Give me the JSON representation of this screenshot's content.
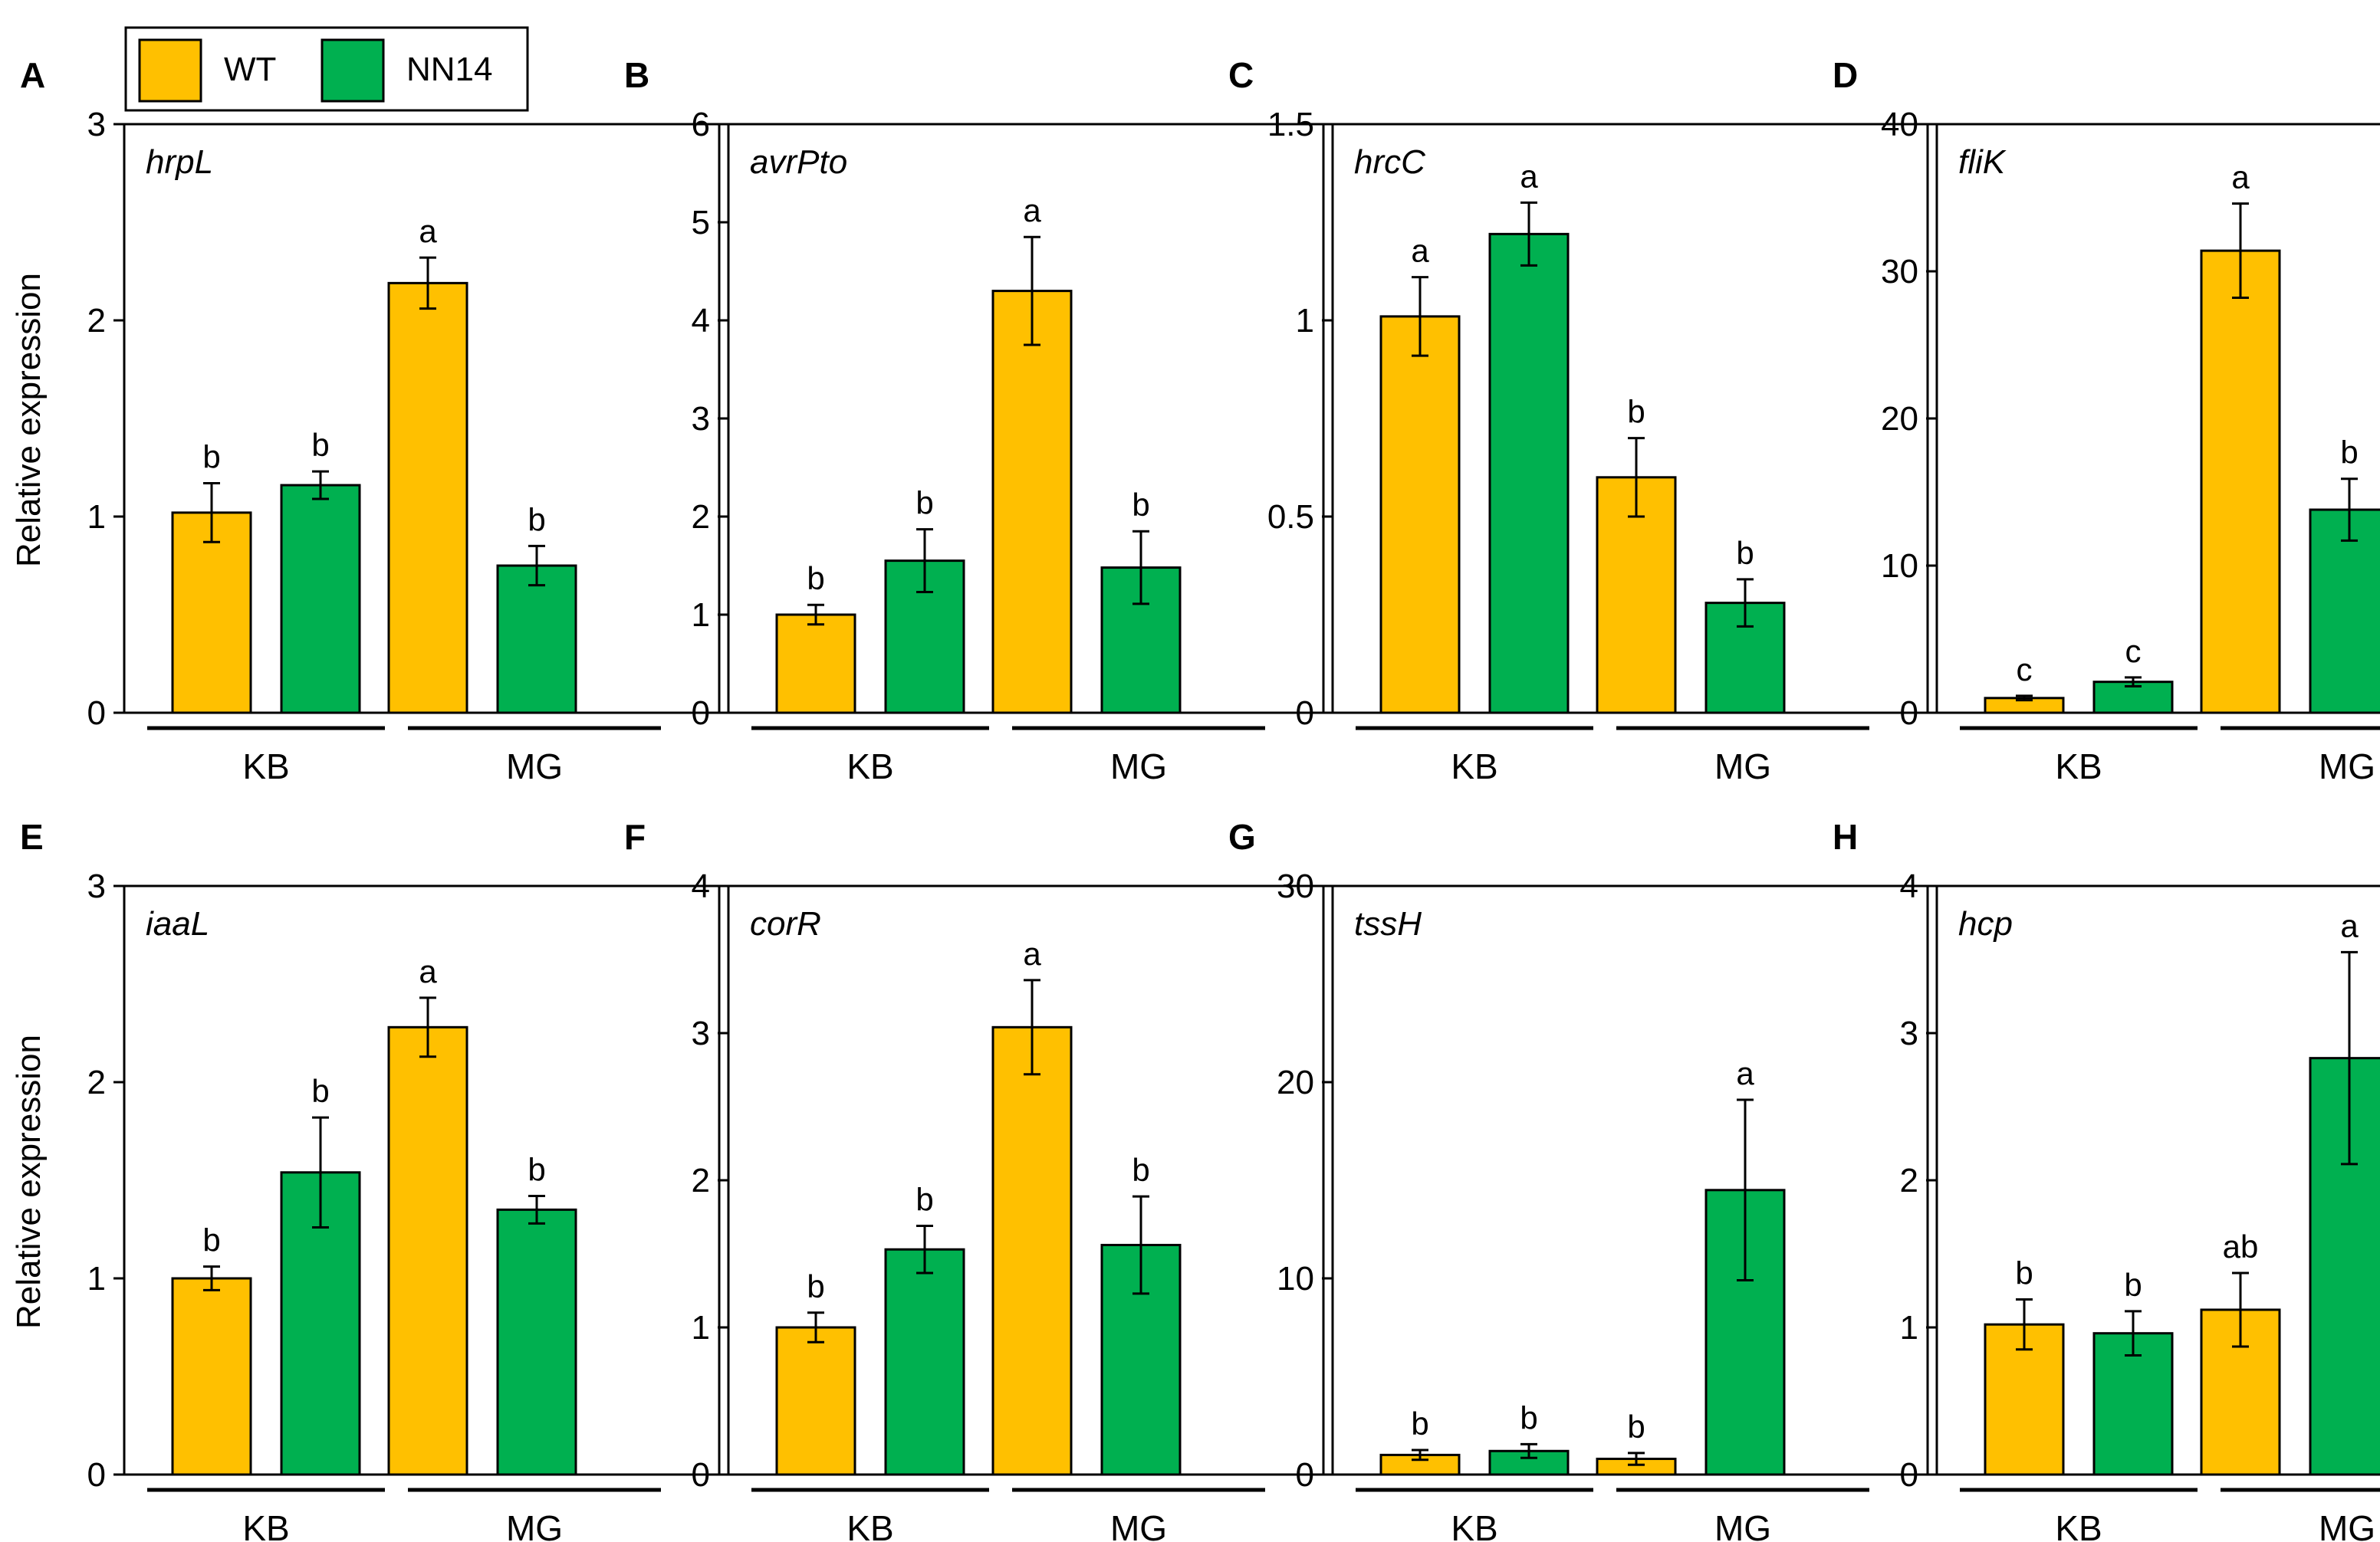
{
  "legend": {
    "entries": [
      {
        "label": "WT",
        "color": "#FFC000"
      },
      {
        "label": "NN14",
        "color": "#00B050"
      }
    ]
  },
  "ylabel": "Relative expression",
  "groups": [
    "KB",
    "MG"
  ],
  "chart_data": [
    {
      "type": "bar",
      "panel": "A",
      "gene": "hrpL",
      "ylim": [
        0,
        3
      ],
      "yticks": [
        "0",
        "1",
        "2",
        "3"
      ],
      "categories": [
        "KB",
        "MG"
      ],
      "series": [
        {
          "name": "WT",
          "values": [
            1.02,
            2.19
          ]
        },
        {
          "name": "NN14",
          "values": [
            1.16,
            0.75
          ]
        }
      ],
      "bars": [
        {
          "series": "WT",
          "group": "KB",
          "value": 1.02,
          "err": 0.15,
          "letter": "b"
        },
        {
          "series": "NN14",
          "group": "KB",
          "value": 1.16,
          "err": 0.07,
          "letter": "b"
        },
        {
          "series": "WT",
          "group": "MG",
          "value": 2.19,
          "err": 0.13,
          "letter": "a"
        },
        {
          "series": "NN14",
          "group": "MG",
          "value": 0.75,
          "err": 0.1,
          "letter": "b"
        }
      ]
    },
    {
      "type": "bar",
      "panel": "B",
      "gene": "avrPto",
      "ylim": [
        0,
        6
      ],
      "yticks": [
        "0",
        "1",
        "2",
        "3",
        "4",
        "5",
        "6"
      ],
      "categories": [
        "KB",
        "MG"
      ],
      "series": [
        {
          "name": "WT",
          "values": [
            1.0,
            4.3
          ]
        },
        {
          "name": "NN14",
          "values": [
            1.55,
            1.48
          ]
        }
      ],
      "bars": [
        {
          "series": "WT",
          "group": "KB",
          "value": 1.0,
          "err": 0.1,
          "letter": "b"
        },
        {
          "series": "NN14",
          "group": "KB",
          "value": 1.55,
          "err": 0.32,
          "letter": "b"
        },
        {
          "series": "WT",
          "group": "MG",
          "value": 4.3,
          "err": 0.55,
          "letter": "a"
        },
        {
          "series": "NN14",
          "group": "MG",
          "value": 1.48,
          "err": 0.37,
          "letter": "b"
        }
      ]
    },
    {
      "type": "bar",
      "panel": "C",
      "gene": "hrcC",
      "ylim": [
        0,
        1.5
      ],
      "yticks": [
        "0",
        "0.5",
        "1",
        "1.5"
      ],
      "categories": [
        "KB",
        "MG"
      ],
      "series": [
        {
          "name": "WT",
          "values": [
            1.01,
            0.6
          ]
        },
        {
          "name": "NN14",
          "values": [
            1.22,
            0.28
          ]
        }
      ],
      "bars": [
        {
          "series": "WT",
          "group": "KB",
          "value": 1.01,
          "err": 0.1,
          "letter": "a"
        },
        {
          "series": "NN14",
          "group": "KB",
          "value": 1.22,
          "err": 0.08,
          "letter": "a"
        },
        {
          "series": "WT",
          "group": "MG",
          "value": 0.6,
          "err": 0.1,
          "letter": "b"
        },
        {
          "series": "NN14",
          "group": "MG",
          "value": 0.28,
          "err": 0.06,
          "letter": "b"
        }
      ]
    },
    {
      "type": "bar",
      "panel": "D",
      "gene": "fliK",
      "ylim": [
        0,
        40
      ],
      "yticks": [
        "0",
        "10",
        "20",
        "30",
        "40"
      ],
      "categories": [
        "KB",
        "MG"
      ],
      "series": [
        {
          "name": "WT",
          "values": [
            1.0,
            31.4
          ]
        },
        {
          "name": "NN14",
          "values": [
            2.1,
            13.8
          ]
        }
      ],
      "bars": [
        {
          "series": "WT",
          "group": "KB",
          "value": 1.0,
          "err": 0.15,
          "letter": "c"
        },
        {
          "series": "NN14",
          "group": "KB",
          "value": 2.1,
          "err": 0.3,
          "letter": "c"
        },
        {
          "series": "WT",
          "group": "MG",
          "value": 31.4,
          "err": 3.2,
          "letter": "a"
        },
        {
          "series": "NN14",
          "group": "MG",
          "value": 13.8,
          "err": 2.1,
          "letter": "b"
        }
      ]
    },
    {
      "type": "bar",
      "panel": "E",
      "gene": "iaaL",
      "ylim": [
        0,
        3
      ],
      "yticks": [
        "0",
        "1",
        "2",
        "3"
      ],
      "categories": [
        "KB",
        "MG"
      ],
      "series": [
        {
          "name": "WT",
          "values": [
            1.0,
            2.28
          ]
        },
        {
          "name": "NN14",
          "values": [
            1.54,
            1.35
          ]
        }
      ],
      "bars": [
        {
          "series": "WT",
          "group": "KB",
          "value": 1.0,
          "err": 0.06,
          "letter": "b"
        },
        {
          "series": "NN14",
          "group": "KB",
          "value": 1.54,
          "err": 0.28,
          "letter": "b"
        },
        {
          "series": "WT",
          "group": "MG",
          "value": 2.28,
          "err": 0.15,
          "letter": "a"
        },
        {
          "series": "NN14",
          "group": "MG",
          "value": 1.35,
          "err": 0.07,
          "letter": "b"
        }
      ]
    },
    {
      "type": "bar",
      "panel": "F",
      "gene": "corR",
      "ylim": [
        0,
        4
      ],
      "yticks": [
        "0",
        "1",
        "2",
        "3",
        "4"
      ],
      "categories": [
        "KB",
        "MG"
      ],
      "series": [
        {
          "name": "WT",
          "values": [
            1.0,
            3.04
          ]
        },
        {
          "name": "NN14",
          "values": [
            1.53,
            1.56
          ]
        }
      ],
      "bars": [
        {
          "series": "WT",
          "group": "KB",
          "value": 1.0,
          "err": 0.1,
          "letter": "b"
        },
        {
          "series": "NN14",
          "group": "KB",
          "value": 1.53,
          "err": 0.16,
          "letter": "b"
        },
        {
          "series": "WT",
          "group": "MG",
          "value": 3.04,
          "err": 0.32,
          "letter": "a"
        },
        {
          "series": "NN14",
          "group": "MG",
          "value": 1.56,
          "err": 0.33,
          "letter": "b"
        }
      ]
    },
    {
      "type": "bar",
      "panel": "G",
      "gene": "tssH",
      "ylim": [
        0,
        30
      ],
      "yticks": [
        "0",
        "10",
        "20",
        "30"
      ],
      "categories": [
        "KB",
        "MG"
      ],
      "series": [
        {
          "name": "WT",
          "values": [
            1.0,
            0.8
          ]
        },
        {
          "name": "NN14",
          "values": [
            1.2,
            14.5
          ]
        }
      ],
      "bars": [
        {
          "series": "WT",
          "group": "KB",
          "value": 1.0,
          "err": 0.25,
          "letter": "b"
        },
        {
          "series": "NN14",
          "group": "KB",
          "value": 1.2,
          "err": 0.35,
          "letter": "b"
        },
        {
          "series": "WT",
          "group": "MG",
          "value": 0.8,
          "err": 0.3,
          "letter": "b"
        },
        {
          "series": "NN14",
          "group": "MG",
          "value": 14.5,
          "err": 4.6,
          "letter": "a"
        }
      ]
    },
    {
      "type": "bar",
      "panel": "H",
      "gene": "hcp",
      "ylim": [
        0,
        4
      ],
      "yticks": [
        "0",
        "1",
        "2",
        "3",
        "4"
      ],
      "categories": [
        "KB",
        "MG"
      ],
      "series": [
        {
          "name": "WT",
          "values": [
            1.02,
            1.12
          ]
        },
        {
          "name": "NN14",
          "values": [
            0.96,
            2.83
          ]
        }
      ],
      "bars": [
        {
          "series": "WT",
          "group": "KB",
          "value": 1.02,
          "err": 0.17,
          "letter": "b"
        },
        {
          "series": "NN14",
          "group": "KB",
          "value": 0.96,
          "err": 0.15,
          "letter": "b"
        },
        {
          "series": "WT",
          "group": "MG",
          "value": 1.12,
          "err": 0.25,
          "letter": "ab"
        },
        {
          "series": "NN14",
          "group": "MG",
          "value": 2.83,
          "err": 0.72,
          "letter": "a"
        }
      ]
    }
  ]
}
